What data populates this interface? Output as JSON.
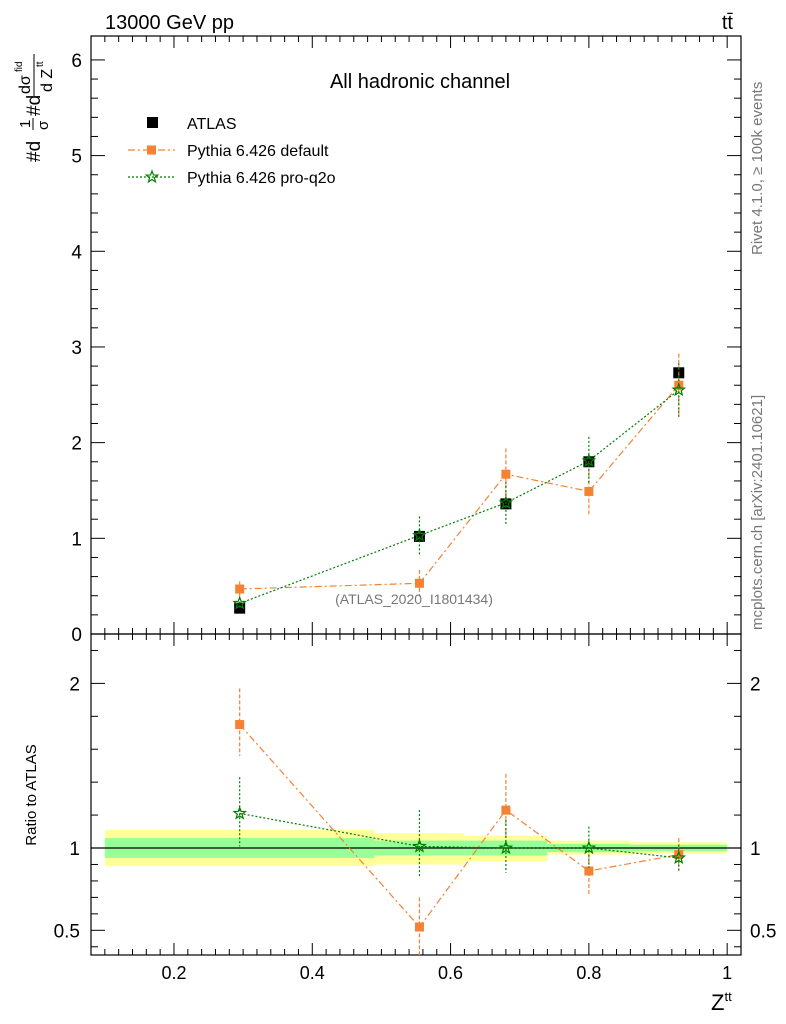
{
  "header": {
    "left": "13000 GeV pp",
    "right": "tt̄"
  },
  "side_texts": {
    "rivet": "Rivet 4.1.0, ≥ 100k events",
    "mcplots": "mcplots.cern.ch [arXiv:2401.10621]"
  },
  "colors": {
    "atlas": "#000000",
    "default": "#f58233",
    "proq2o": "#007f00",
    "band_inner": "#99ff99",
    "band_outer": "#ffff99"
  },
  "chart_data": [
    {
      "type": "scatter",
      "panel": "main",
      "title": "All hadronic channel",
      "watermark": "(ATLAS_2020_I1801434)",
      "ylabel": "#d 1/σ #d dσ^fid / d Z^tt",
      "ylabel_parts": {
        "pre": "#d",
        "frac1_num": "1",
        "frac1_den": "σ",
        "mid": "#d",
        "num": "dσ",
        "num_sup": "fid",
        "den": "d Z",
        "den_sup": "tt"
      },
      "xlim": [
        0.08,
        1.02
      ],
      "ylim": [
        0,
        6.25
      ],
      "yticks": [
        0,
        1,
        2,
        3,
        4,
        5,
        6
      ],
      "legend_position": "top-left",
      "legend": [
        "ATLAS",
        "Pythia 6.426 default",
        "Pythia 6.426 pro-q2o"
      ],
      "x_edges": [
        0.1,
        0.49,
        0.62,
        0.74,
        0.86,
        1.0
      ],
      "series": [
        {
          "name": "ATLAS",
          "x": [
            0.295,
            0.555,
            0.68,
            0.8,
            0.93
          ],
          "values": [
            0.27,
            1.02,
            1.36,
            1.8,
            2.73
          ],
          "err": [
            0.03,
            0.04,
            0.05,
            0.05,
            0.06
          ]
        },
        {
          "name": "Pythia 6.426 default",
          "x": [
            0.295,
            0.555,
            0.68,
            0.8,
            0.93
          ],
          "values": [
            0.47,
            0.53,
            1.67,
            1.49,
            2.6
          ],
          "err": [
            0.08,
            0.14,
            0.27,
            0.24,
            0.33
          ]
        },
        {
          "name": "Pythia 6.426 pro-q2o",
          "x": [
            0.295,
            0.555,
            0.68,
            0.8,
            0.93
          ],
          "values": [
            0.32,
            1.03,
            1.37,
            1.81,
            2.55
          ],
          "err": [
            0.06,
            0.2,
            0.22,
            0.25,
            0.28
          ]
        }
      ]
    },
    {
      "type": "scatter",
      "panel": "ratio",
      "ylabel": "Ratio to ATLAS",
      "xlabel": "Z^tt",
      "xlabel_parts": {
        "base": "Z",
        "sup": "tt"
      },
      "xlim": [
        0.08,
        1.02
      ],
      "ylim": [
        0.35,
        2.3
      ],
      "yticks": [
        0.5,
        1,
        2
      ],
      "xticks": [
        0.2,
        0.4,
        0.6,
        0.8,
        1
      ],
      "xtick_labels": [
        "0.2",
        "0.4",
        "0.6",
        "0.8",
        "1"
      ],
      "ytick_labels": [
        "0.5",
        "1",
        "2"
      ],
      "band_inner": [
        {
          "x0": 0.1,
          "x1": 0.49,
          "lo": 0.94,
          "hi": 1.06
        },
        {
          "x0": 0.49,
          "x1": 0.62,
          "lo": 0.955,
          "hi": 1.045
        },
        {
          "x0": 0.62,
          "x1": 0.74,
          "lo": 0.955,
          "hi": 1.045
        },
        {
          "x0": 0.74,
          "x1": 0.86,
          "lo": 0.975,
          "hi": 1.025
        },
        {
          "x0": 0.86,
          "x1": 1.0,
          "lo": 0.98,
          "hi": 1.02
        }
      ],
      "band_outer": [
        {
          "x0": 0.1,
          "x1": 0.49,
          "lo": 0.89,
          "hi": 1.11
        },
        {
          "x0": 0.49,
          "x1": 0.62,
          "lo": 0.9,
          "hi": 1.09
        },
        {
          "x0": 0.62,
          "x1": 0.74,
          "lo": 0.92,
          "hi": 1.075
        },
        {
          "x0": 0.74,
          "x1": 0.86,
          "lo": 0.96,
          "hi": 1.045
        },
        {
          "x0": 0.86,
          "x1": 1.0,
          "lo": 0.965,
          "hi": 1.035
        }
      ],
      "series": [
        {
          "name": "Pythia 6.426 default",
          "x": [
            0.295,
            0.555,
            0.68,
            0.8,
            0.93
          ],
          "values": [
            1.75,
            0.52,
            1.23,
            0.86,
            0.96
          ],
          "err_lo": [
            0.19,
            0.18,
            0.2,
            0.14,
            0.09
          ],
          "err_hi": [
            0.22,
            0.18,
            0.22,
            0.14,
            0.1
          ]
        },
        {
          "name": "Pythia 6.426 pro-q2o",
          "x": [
            0.295,
            0.555,
            0.68,
            0.8,
            0.93
          ],
          "values": [
            1.21,
            1.01,
            1.0,
            1.0,
            0.94
          ],
          "err_lo": [
            0.2,
            0.18,
            0.15,
            0.12,
            0.08
          ],
          "err_hi": [
            0.22,
            0.22,
            0.17,
            0.13,
            0.08
          ]
        }
      ]
    }
  ]
}
